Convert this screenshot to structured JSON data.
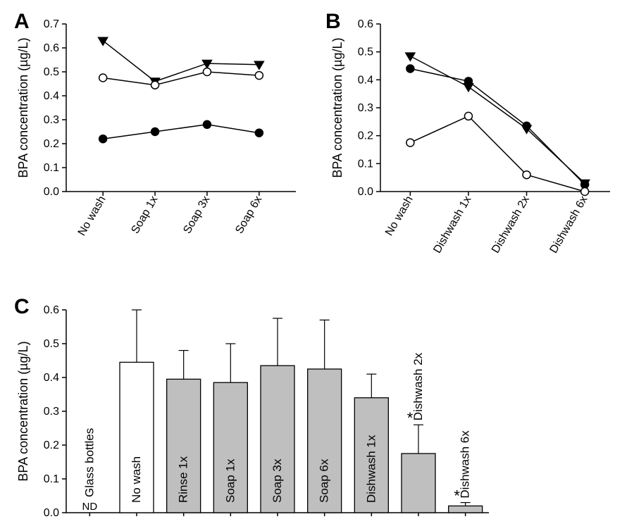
{
  "figure": {
    "background_color": "#ffffff",
    "stroke_color": "#000000",
    "font_family": "Arial",
    "panel_label_fontsize": 30,
    "axis_label_fontsize": 18,
    "tick_fontsize": 16
  },
  "panelA": {
    "label": "A",
    "type": "line",
    "y_label": "BPA concentration (µg/L)",
    "x_categories": [
      "No wash",
      "Soap 1x",
      "Soap 3x",
      "Soap 6x"
    ],
    "ylim": [
      0.0,
      0.7
    ],
    "ytick_step": 0.1,
    "yticks": [
      "0.0",
      "0.1",
      "0.2",
      "0.3",
      "0.4",
      "0.5",
      "0.6",
      "0.7"
    ],
    "series": [
      {
        "name": "filled-triangle",
        "marker": "triangle-down",
        "fill": "#000000",
        "stroke": "#000000",
        "values": [
          0.63,
          0.46,
          0.535,
          0.53
        ]
      },
      {
        "name": "open-circle",
        "marker": "circle",
        "fill": "#ffffff",
        "stroke": "#000000",
        "values": [
          0.475,
          0.445,
          0.5,
          0.485
        ]
      },
      {
        "name": "filled-circle",
        "marker": "circle",
        "fill": "#000000",
        "stroke": "#000000",
        "values": [
          0.22,
          0.25,
          0.28,
          0.245
        ]
      }
    ]
  },
  "panelB": {
    "label": "B",
    "type": "line",
    "y_label": "BPA concentration (µg/L)",
    "x_categories": [
      "No wash",
      "Dishwash 1x",
      "Dishwash 2x",
      "Dishwash 6x"
    ],
    "ylim": [
      0.0,
      0.6
    ],
    "ytick_step": 0.1,
    "yticks": [
      "0.0",
      "0.1",
      "0.2",
      "0.3",
      "0.4",
      "0.5",
      "0.6"
    ],
    "series": [
      {
        "name": "filled-triangle",
        "marker": "triangle-down",
        "fill": "#000000",
        "stroke": "#000000",
        "values": [
          0.485,
          0.375,
          0.225,
          0.03
        ]
      },
      {
        "name": "filled-circle",
        "marker": "circle",
        "fill": "#000000",
        "stroke": "#000000",
        "values": [
          0.44,
          0.395,
          0.235,
          0.025
        ]
      },
      {
        "name": "open-circle",
        "marker": "circle",
        "fill": "#ffffff",
        "stroke": "#000000",
        "values": [
          0.175,
          0.27,
          0.06,
          0.0
        ]
      }
    ]
  },
  "panelC": {
    "label": "C",
    "type": "bar",
    "y_label": "BPA concentration (µg/L)",
    "ylim": [
      0.0,
      0.6
    ],
    "ytick_step": 0.1,
    "yticks": [
      "0.0",
      "0.1",
      "0.2",
      "0.3",
      "0.4",
      "0.5",
      "0.6"
    ],
    "bar_fill_glass": "#ffffff",
    "bar_fill_nowash": "#ffffff",
    "bar_fill_default": "#bfbfbf",
    "bar_border": "#000000",
    "bars": [
      {
        "label": "Glass bottles",
        "value": 0.0,
        "error": 0.0,
        "fill": "#ffffff",
        "nd": true,
        "nd_text": "ND",
        "star": false
      },
      {
        "label": "No wash",
        "value": 0.445,
        "error": 0.155,
        "fill": "#ffffff",
        "star": false
      },
      {
        "label": "Rinse 1x",
        "value": 0.395,
        "error": 0.085,
        "fill": "#bfbfbf",
        "star": false
      },
      {
        "label": "Soap 1x",
        "value": 0.385,
        "error": 0.115,
        "fill": "#bfbfbf",
        "star": false
      },
      {
        "label": "Soap 3x",
        "value": 0.435,
        "error": 0.14,
        "fill": "#bfbfbf",
        "star": false
      },
      {
        "label": "Soap 6x",
        "value": 0.425,
        "error": 0.145,
        "fill": "#bfbfbf",
        "star": false
      },
      {
        "label": "Dishwash 1x",
        "value": 0.34,
        "error": 0.07,
        "fill": "#bfbfbf",
        "star": false
      },
      {
        "label": "Dishwash 2x",
        "value": 0.175,
        "error": 0.085,
        "fill": "#bfbfbf",
        "star": true,
        "star_text": "*"
      },
      {
        "label": "Dishwash 6x",
        "value": 0.02,
        "error": 0.01,
        "fill": "#bfbfbf",
        "star": true,
        "star_text": "*"
      }
    ]
  }
}
